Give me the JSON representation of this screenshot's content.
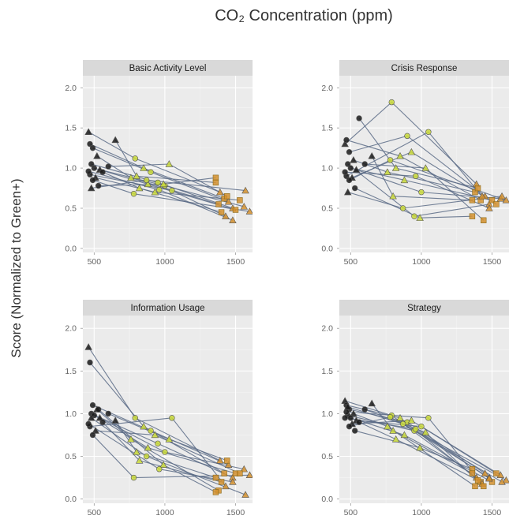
{
  "chart_data": {
    "type": "line",
    "title": "CO₂ Concentration (ppm)",
    "ylabel": "Score (Normalized to Green+)",
    "xlim": [
      420,
      1620
    ],
    "ylim": [
      -0.05,
      2.15
    ],
    "x_ticks": [
      500,
      1000,
      1500
    ],
    "x_tick_labels": [
      "500",
      "1000",
      "1500"
    ],
    "y_ticks": [
      0.0,
      0.5,
      1.0,
      1.5,
      2.0
    ],
    "y_tick_labels": [
      "0.0",
      "0.5",
      "1.0",
      "1.5",
      "2.0"
    ],
    "grid": true,
    "condition_colors": [
      "#1a1a1a",
      "#c9d93a",
      "#d4912e"
    ],
    "line_color": "#5b6b86",
    "panels": [
      {
        "strip": "Basic Activity Level",
        "series": [
          {
            "x": [
              460,
              790,
              1390
            ],
            "y": [
              1.45,
              1.12,
              0.7
            ]
          },
          {
            "x": [
              470,
              850,
              1420
            ],
            "y": [
              1.3,
              1.0,
              0.62
            ]
          },
          {
            "x": [
              490,
              900,
              1450
            ],
            "y": [
              1.25,
              0.95,
              0.58
            ]
          },
          {
            "x": [
              520,
              760,
              1380
            ],
            "y": [
              1.15,
              0.88,
              0.55
            ]
          },
          {
            "x": [
              480,
              950,
              1480
            ],
            "y": [
              1.05,
              0.82,
              0.5
            ]
          },
          {
            "x": [
              500,
              880,
              1500
            ],
            "y": [
              1.0,
              0.8,
              0.48
            ]
          },
          {
            "x": [
              540,
              1000,
              1560
            ],
            "y": [
              0.98,
              0.78,
              0.52
            ]
          },
          {
            "x": [
              560,
              820,
              1400
            ],
            "y": [
              0.95,
              0.75,
              0.45
            ]
          },
          {
            "x": [
              470,
              1050,
              1430
            ],
            "y": [
              0.92,
              0.72,
              0.4
            ]
          },
          {
            "x": [
              510,
              930,
              1530
            ],
            "y": [
              0.88,
              0.7,
              0.6
            ]
          },
          {
            "x": [
              490,
              780,
              1600
            ],
            "y": [
              0.85,
              0.68,
              0.46
            ]
          },
          {
            "x": [
              530,
              990,
              1360
            ],
            "y": [
              0.78,
              0.8,
              0.88
            ]
          },
          {
            "x": [
              480,
              870,
              1570
            ],
            "y": [
              0.75,
              0.85,
              0.72
            ]
          },
          {
            "x": [
              600,
              1030,
              1440
            ],
            "y": [
              1.02,
              1.05,
              0.65
            ]
          },
          {
            "x": [
              460,
              960,
              1480
            ],
            "y": [
              0.96,
              0.73,
              0.35
            ]
          },
          {
            "x": [
              650,
              800,
              1360
            ],
            "y": [
              1.35,
              0.9,
              0.82
            ]
          }
        ]
      },
      {
        "strip": "Crisis Response",
        "series": [
          {
            "x": [
              460,
              790,
              1390
            ],
            "y": [
              1.3,
              1.82,
              0.8
            ]
          },
          {
            "x": [
              470,
              850,
              1420
            ],
            "y": [
              1.35,
              1.15,
              0.6
            ]
          },
          {
            "x": [
              490,
              900,
              1450
            ],
            "y": [
              1.2,
              1.4,
              0.65
            ]
          },
          {
            "x": [
              520,
              760,
              1380
            ],
            "y": [
              1.1,
              0.95,
              0.7
            ]
          },
          {
            "x": [
              480,
              950,
              1480
            ],
            "y": [
              1.05,
              0.4,
              0.55
            ]
          },
          {
            "x": [
              500,
              880,
              1500
            ],
            "y": [
              1.0,
              0.85,
              0.6
            ]
          },
          {
            "x": [
              540,
              1000,
              1560
            ],
            "y": [
              0.98,
              0.7,
              0.62
            ]
          },
          {
            "x": [
              560,
              820,
              1400
            ],
            "y": [
              1.62,
              1.0,
              0.75
            ]
          },
          {
            "x": [
              470,
              1050,
              1430
            ],
            "y": [
              0.9,
              1.45,
              0.65
            ]
          },
          {
            "x": [
              510,
              930,
              1530
            ],
            "y": [
              0.88,
              1.2,
              0.55
            ]
          },
          {
            "x": [
              490,
              780,
              1600
            ],
            "y": [
              0.85,
              1.1,
              0.6
            ]
          },
          {
            "x": [
              530,
              990,
              1360
            ],
            "y": [
              0.75,
              0.38,
              0.4
            ]
          },
          {
            "x": [
              480,
              870,
              1570
            ],
            "y": [
              0.7,
              0.5,
              0.65
            ]
          },
          {
            "x": [
              600,
              1030,
              1440
            ],
            "y": [
              1.05,
              1.0,
              0.35
            ]
          },
          {
            "x": [
              460,
              960,
              1480
            ],
            "y": [
              0.95,
              0.9,
              0.5
            ]
          },
          {
            "x": [
              650,
              800,
              1360
            ],
            "y": [
              1.15,
              0.65,
              0.6
            ]
          }
        ]
      },
      {
        "strip": "Information Usage",
        "series": [
          {
            "x": [
              460,
              790,
              1390
            ],
            "y": [
              1.78,
              0.95,
              0.45
            ]
          },
          {
            "x": [
              470,
              850,
              1420
            ],
            "y": [
              1.6,
              0.85,
              0.3
            ]
          },
          {
            "x": [
              490,
              900,
              1450
            ],
            "y": [
              1.1,
              0.8,
              0.4
            ]
          },
          {
            "x": [
              520,
              760,
              1380
            ],
            "y": [
              1.05,
              0.7,
              0.1
            ]
          },
          {
            "x": [
              480,
              950,
              1480
            ],
            "y": [
              1.0,
              0.65,
              0.25
            ]
          },
          {
            "x": [
              500,
              880,
              1500
            ],
            "y": [
              0.98,
              0.6,
              0.3
            ]
          },
          {
            "x": [
              540,
              1000,
              1560
            ],
            "y": [
              0.95,
              0.55,
              0.35
            ]
          },
          {
            "x": [
              560,
              820,
              1400
            ],
            "y": [
              0.9,
              0.45,
              0.2
            ]
          },
          {
            "x": [
              470,
              1050,
              1430
            ],
            "y": [
              0.85,
              0.95,
              0.15
            ]
          },
          {
            "x": [
              510,
              930,
              1530
            ],
            "y": [
              0.8,
              0.75,
              0.3
            ]
          },
          {
            "x": [
              490,
              780,
              1600
            ],
            "y": [
              0.75,
              0.25,
              0.28
            ]
          },
          {
            "x": [
              530,
              990,
              1360
            ],
            "y": [
              1.05,
              0.4,
              0.08
            ]
          },
          {
            "x": [
              480,
              870,
              1570
            ],
            "y": [
              0.95,
              0.5,
              0.05
            ]
          },
          {
            "x": [
              600,
              1030,
              1440
            ],
            "y": [
              1.0,
              0.7,
              0.45
            ]
          },
          {
            "x": [
              460,
              960,
              1480
            ],
            "y": [
              0.88,
              0.35,
              0.2
            ]
          },
          {
            "x": [
              650,
              800,
              1360
            ],
            "y": [
              0.92,
              0.55,
              0.25
            ]
          }
        ]
      },
      {
        "strip": "Strategy",
        "series": [
          {
            "x": [
              460,
              790,
              1390
            ],
            "y": [
              1.15,
              0.98,
              0.25
            ]
          },
          {
            "x": [
              470,
              850,
              1420
            ],
            "y": [
              1.1,
              0.95,
              0.2
            ]
          },
          {
            "x": [
              490,
              900,
              1450
            ],
            "y": [
              1.05,
              0.9,
              0.3
            ]
          },
          {
            "x": [
              520,
              760,
              1380
            ],
            "y": [
              1.0,
              0.85,
              0.15
            ]
          },
          {
            "x": [
              480,
              950,
              1480
            ],
            "y": [
              0.98,
              0.8,
              0.25
            ]
          },
          {
            "x": [
              500,
              880,
              1500
            ],
            "y": [
              0.95,
              0.75,
              0.2
            ]
          },
          {
            "x": [
              540,
              1000,
              1560
            ],
            "y": [
              0.92,
              0.85,
              0.28
            ]
          },
          {
            "x": [
              560,
              820,
              1400
            ],
            "y": [
              0.9,
              0.7,
              0.22
            ]
          },
          {
            "x": [
              470,
              1050,
              1430
            ],
            "y": [
              1.02,
              0.95,
              0.18
            ]
          },
          {
            "x": [
              510,
              930,
              1530
            ],
            "y": [
              0.88,
              0.92,
              0.3
            ]
          },
          {
            "x": [
              490,
              780,
              1600
            ],
            "y": [
              0.85,
              0.96,
              0.22
            ]
          },
          {
            "x": [
              530,
              990,
              1360
            ],
            "y": [
              0.8,
              0.6,
              0.35
            ]
          },
          {
            "x": [
              480,
              870,
              1570
            ],
            "y": [
              1.08,
              0.88,
              0.2
            ]
          },
          {
            "x": [
              600,
              1030,
              1440
            ],
            "y": [
              1.05,
              0.78,
              0.15
            ]
          },
          {
            "x": [
              460,
              960,
              1480
            ],
            "y": [
              0.95,
              0.82,
              0.24
            ]
          },
          {
            "x": [
              650,
              800,
              1360
            ],
            "y": [
              1.12,
              0.8,
              0.3
            ]
          }
        ]
      }
    ]
  }
}
